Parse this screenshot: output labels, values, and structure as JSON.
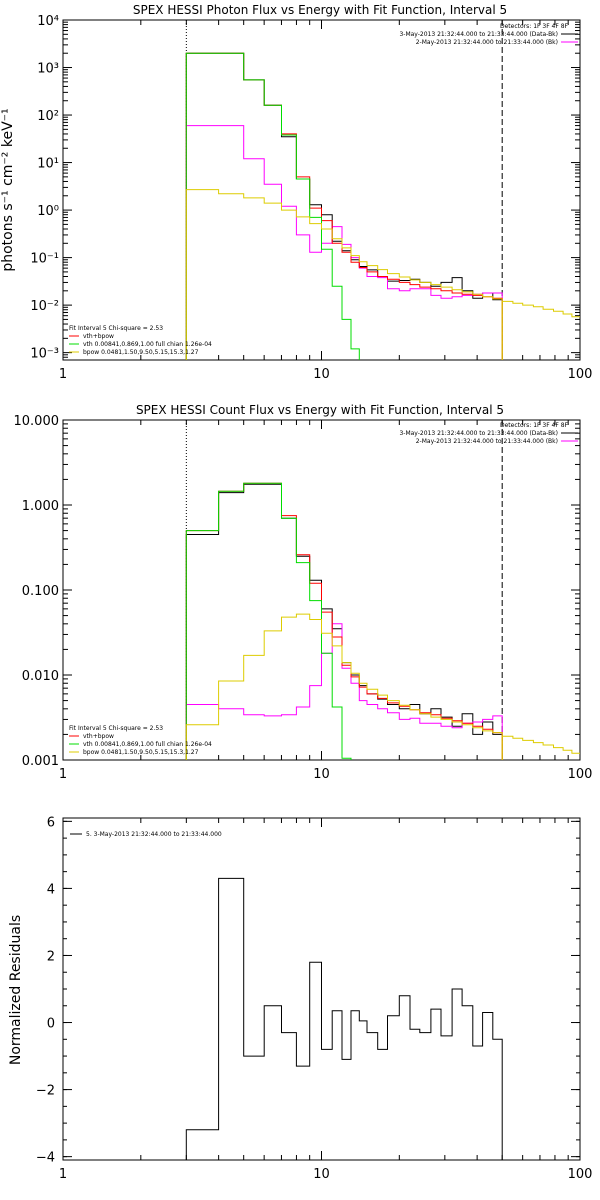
{
  "colors": {
    "data": "#000000",
    "background": "#ff00ff",
    "total": "#ff0000",
    "vth": "#00dd00",
    "bpow": "#ddcc00"
  },
  "chart_data": [
    {
      "type": "line",
      "title": "SPEX HESSI Photon Flux vs Energy with Fit Function, Interval 5",
      "ylabel": "photons s⁻¹ cm⁻² keV⁻¹",
      "xscale": "log",
      "yscale": "log",
      "xlim": [
        1,
        100
      ],
      "ylim": [
        0.0007,
        10000
      ],
      "xticks": [
        "1",
        "10",
        "100"
      ],
      "yticks": [
        "10⁴",
        "10³",
        "10²",
        "10¹",
        "10⁰",
        "10⁻¹",
        "10⁻²",
        "10⁻³"
      ],
      "vlines": {
        "dotted": 3,
        "dashed": 50
      },
      "legend_tr": {
        "header": "Detectors: 1F 3F 4F 8F",
        "lines": [
          "3-May-2013 21:32:44.000 to 21:33:44.000 (Data-Bk)",
          "2-May-2013 21:32:44.000 to 21:33:44.000 (Bk)"
        ]
      },
      "legend_bl": {
        "header": "Fit Interval 5   Chi-square = 2.53",
        "lines": [
          "vth+bpow",
          "vth 0.00841,0.869,1.00   full chian 1.26e-04",
          "bpow 0.0481,1.50,9.50,5.15,15.3,1.27"
        ]
      },
      "edges": [
        3,
        4,
        5,
        6,
        7,
        8,
        9,
        10,
        11,
        12,
        13,
        14,
        15,
        16.5,
        18,
        20,
        22,
        24,
        26.5,
        29,
        32,
        35,
        38.5,
        42,
        46,
        50
      ],
      "series": [
        {
          "name": "Data-Bk",
          "color": "#000000",
          "values": [
            2000,
            2000,
            550,
            160,
            35,
            4.5,
            1.3,
            0.8,
            0.22,
            0.14,
            0.09,
            0.065,
            0.055,
            0.04,
            0.032,
            0.033,
            0.035,
            0.03,
            0.025,
            0.03,
            0.038,
            0.02,
            0.014,
            0.018,
            0.013
          ]
        },
        {
          "name": "Bk",
          "color": "#ff00ff",
          "values": [
            60,
            60,
            12,
            3.5,
            1.2,
            0.3,
            0.13,
            0.2,
            0.45,
            0.19,
            0.1,
            0.06,
            0.04,
            0.038,
            0.022,
            0.02,
            0.022,
            0.022,
            0.016,
            0.014,
            0.015,
            0.016,
            0.017,
            0.018,
            0.018
          ]
        },
        {
          "name": "vth+bpow",
          "color": "#ff0000",
          "values": [
            2000,
            2000,
            550,
            160,
            40,
            5,
            1.1,
            0.6,
            0.2,
            0.13,
            0.08,
            0.062,
            0.05,
            0.04,
            0.035,
            0.03,
            0.027,
            0.024,
            0.022,
            0.02,
            0.018,
            0.017,
            0.016,
            0.015,
            0.014
          ]
        },
        {
          "name": "vth",
          "color": "#00dd00",
          "values": [
            2000,
            2000,
            550,
            160,
            38,
            4.5,
            0.7,
            0.15,
            0.025,
            0.005,
            0.0012
          ]
        },
        {
          "name": "bpow",
          "color": "#ddcc00",
          "values": [
            2.7,
            2.2,
            1.8,
            1.4,
            1.0,
            0.72,
            0.52,
            0.4,
            0.25,
            0.16,
            0.11,
            0.082,
            0.068,
            0.056,
            0.046,
            0.039,
            0.034,
            0.03,
            0.027,
            0.024,
            0.021,
            0.019,
            0.017,
            0.015,
            0.0135
          ]
        },
        {
          "name": "bpow-ext",
          "color": "#ddcc00",
          "edges": [
            50,
            55,
            60,
            66,
            72,
            79,
            86,
            93,
            100
          ],
          "values": [
            0.012,
            0.011,
            0.01,
            0.0092,
            0.0082,
            0.0074,
            0.0065,
            0.0057
          ]
        }
      ]
    },
    {
      "type": "line",
      "title": "SPEX HESSI Count Flux vs Energy with Fit Function, Interval 5",
      "ylabel": "",
      "xscale": "log",
      "yscale": "log",
      "xlim": [
        1,
        100
      ],
      "ylim": [
        0.001,
        10
      ],
      "xticks": [
        "1",
        "10",
        "100"
      ],
      "yticks": [
        "10.000",
        "1.000",
        "0.100",
        "0.010",
        "0.001"
      ],
      "vlines": {
        "dotted": 3,
        "dashed": 50
      },
      "legend_tr": {
        "header": "Detectors: 1F 3F 4F 8F",
        "lines": [
          "3-May-2013 21:32:44.000 to 21:33:44.000 (Data-Bk)",
          "2-May-2013 21:32:44.000 to 21:33:44.000 (Bk)"
        ]
      },
      "legend_bl": {
        "header": "Fit Interval 5   Chi-square = 2.53",
        "lines": [
          "vth+bpow",
          "vth 0.00841,0.869,1.00   full chian 1.26e-04",
          "bpow 0.0481,1.50,9.50,5.15,15.3,1.27"
        ]
      },
      "edges": [
        3,
        4,
        5,
        6,
        7,
        8,
        9,
        10,
        11,
        12,
        13,
        14,
        15,
        16.5,
        18,
        20,
        22,
        24,
        26.5,
        29,
        32,
        35,
        38.5,
        42,
        46,
        50
      ],
      "series": [
        {
          "name": "Data-Bk",
          "color": "#000000",
          "values": [
            0.45,
            1.4,
            1.75,
            1.75,
            0.7,
            0.25,
            0.13,
            0.06,
            0.035,
            0.014,
            0.01,
            0.0075,
            0.006,
            0.0052,
            0.0045,
            0.004,
            0.0045,
            0.0035,
            0.004,
            0.0032,
            0.0025,
            0.0035,
            0.002,
            0.0028,
            0.002
          ]
        },
        {
          "name": "Bk",
          "color": "#ff00ff",
          "values": [
            0.0045,
            0.004,
            0.0034,
            0.0033,
            0.0034,
            0.0042,
            0.0075,
            0.018,
            0.04,
            0.012,
            0.008,
            0.005,
            0.0045,
            0.004,
            0.0036,
            0.003,
            0.0031,
            0.0027,
            0.0027,
            0.0025,
            0.0024,
            0.0027,
            0.0028,
            0.003,
            0.0033
          ]
        },
        {
          "name": "vth+bpow",
          "color": "#ff0000",
          "values": [
            0.5,
            1.45,
            1.8,
            1.8,
            0.75,
            0.26,
            0.12,
            0.055,
            0.028,
            0.013,
            0.0095,
            0.0072,
            0.006,
            0.0053,
            0.0047,
            0.0043,
            0.0039,
            0.0036,
            0.0034,
            0.0031,
            0.0029,
            0.0027,
            0.0025,
            0.0023,
            0.0021
          ]
        },
        {
          "name": "vth",
          "color": "#00dd00",
          "values": [
            0.5,
            1.45,
            1.8,
            1.8,
            0.7,
            0.21,
            0.075,
            0.018,
            0.0042,
            0.00105
          ]
        },
        {
          "name": "bpow",
          "color": "#ddcc00",
          "values": [
            0.0026,
            0.0085,
            0.017,
            0.033,
            0.048,
            0.052,
            0.045,
            0.031,
            0.022,
            0.014,
            0.0105,
            0.008,
            0.0068,
            0.0058,
            0.005,
            0.0044,
            0.0039,
            0.0035,
            0.0032,
            0.003,
            0.0028,
            0.0026,
            0.0024,
            0.0022,
            0.0021
          ]
        },
        {
          "name": "bpow-ext",
          "color": "#ddcc00",
          "edges": [
            50,
            55,
            60,
            66,
            72,
            79,
            86,
            93,
            100
          ],
          "values": [
            0.0019,
            0.0018,
            0.0017,
            0.0016,
            0.0015,
            0.0014,
            0.0013,
            0.0012
          ]
        }
      ]
    },
    {
      "type": "line",
      "title": "",
      "ylabel": "Normalized Residuals",
      "xscale": "log",
      "yscale": "linear",
      "xlim": [
        1,
        100
      ],
      "ylim": [
        -4.1,
        6.1
      ],
      "xticks": [
        "1",
        "10",
        "100"
      ],
      "yticks": [
        "6",
        "4",
        "2",
        "0",
        "−2",
        "−4"
      ],
      "ytick_values": [
        6,
        4,
        2,
        0,
        -2,
        -4
      ],
      "legend_tl": {
        "lines": [
          "5. 3-May-2013 21:32:44.000 to 21:33:44.000"
        ]
      },
      "edges": [
        3,
        4,
        5,
        6,
        7,
        8,
        9,
        10,
        11,
        12,
        13,
        14,
        15,
        16.5,
        18,
        20,
        22,
        24,
        26.5,
        29,
        32,
        35,
        38.5,
        42,
        46,
        50
      ],
      "series": [
        {
          "name": "Residuals",
          "color": "#000000",
          "values": [
            -3.2,
            4.3,
            -1.0,
            0.5,
            -0.3,
            -1.3,
            1.8,
            -0.8,
            0.35,
            -1.1,
            0.35,
            0.05,
            -0.3,
            -0.8,
            0.2,
            0.8,
            -0.2,
            -0.3,
            0.4,
            -0.4,
            1.0,
            0.5,
            -0.7,
            0.3,
            -0.5
          ]
        }
      ]
    }
  ]
}
